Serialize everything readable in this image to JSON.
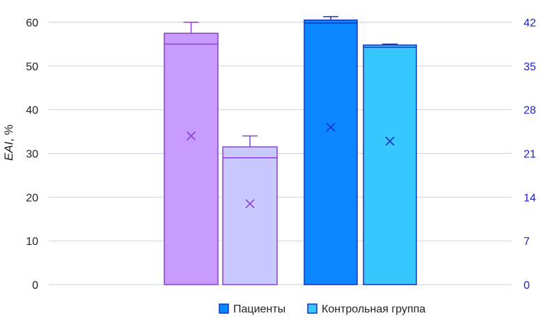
{
  "chart_data": {
    "type": "bar",
    "ylabel_italic": "EAI",
    "ylabel_unit": ", %",
    "ylim": [
      0,
      60
    ],
    "y_ticks": [
      "0",
      "10",
      "20",
      "30",
      "40",
      "50",
      "60"
    ],
    "y2lim": [
      0,
      42
    ],
    "y2_ticks": [
      "0",
      "7",
      "14",
      "21",
      "28",
      "35",
      "42"
    ],
    "grid": true,
    "legend_position": "bottom-right",
    "colors": {
      "patients_left": "#c79bff",
      "control_left": "#c9c9ff",
      "patients_right": "#0a86ff",
      "control_right": "#36c8ff",
      "left_stroke": "#8c3fd6",
      "right_stroke": "#1a2fc0",
      "grid": "#cfd8e3",
      "right_axis_text": "#1f22c8"
    },
    "bars": [
      {
        "group": "left",
        "series": "patients",
        "axis": "left",
        "top": 57.5,
        "median": 55,
        "whisker": 60,
        "mean": 34
      },
      {
        "group": "left",
        "series": "control",
        "axis": "left",
        "top": 31.5,
        "median": 29,
        "whisker": 34,
        "mean": 18.5
      },
      {
        "group": "right",
        "series": "patients",
        "axis": "left",
        "top": 60.5,
        "median": 59.8,
        "whisker": 61.3,
        "mean": 36
      },
      {
        "group": "right",
        "series": "control",
        "axis": "left",
        "top": 54.8,
        "median": 54.3,
        "whisker": 55,
        "mean": 32.8
      }
    ],
    "legend": [
      {
        "label": "Пациенты",
        "color": "#0a86ff"
      },
      {
        "label": "Контрольная группа",
        "color": "#36c8ff"
      }
    ]
  }
}
